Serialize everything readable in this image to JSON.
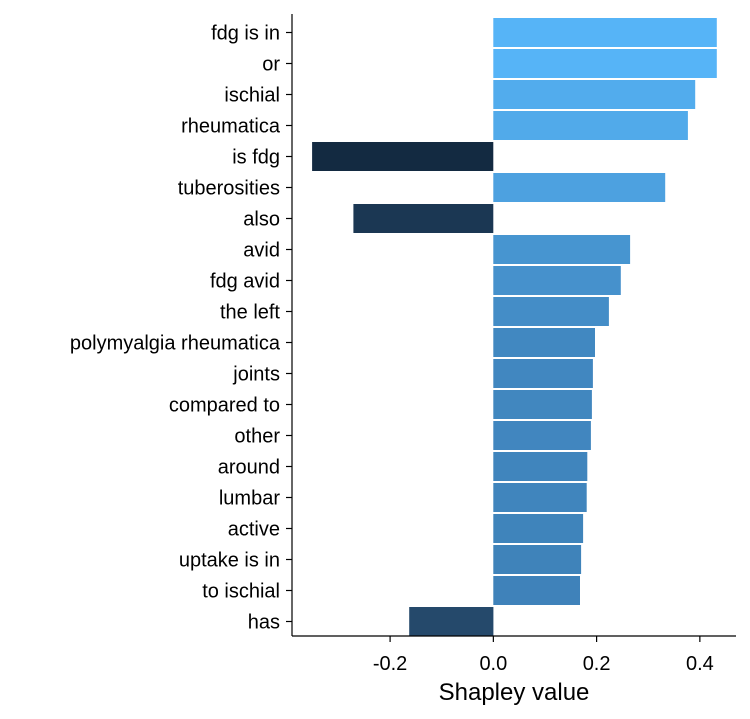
{
  "chart_data": {
    "type": "bar",
    "orientation": "horizontal",
    "xlabel": "Shapley value",
    "xlim": [
      -0.39,
      0.47
    ],
    "xticks": [
      -0.2,
      0.0,
      0.2,
      0.4
    ],
    "xtick_labels": [
      "-0.2",
      "0.0",
      "0.2",
      "0.4"
    ],
    "grid": false,
    "categories": [
      "fdg is in",
      "or",
      "ischial",
      "rheumatica",
      "is fdg",
      "tuberosities",
      "also",
      "avid",
      "fdg avid",
      "the left",
      "polymyalgia rheumatica",
      "joints",
      "compared to",
      "other",
      "around",
      "lumbar",
      "active",
      "uptake is in",
      "to ischial",
      "has"
    ],
    "values": [
      0.433,
      0.433,
      0.391,
      0.377,
      -0.351,
      0.333,
      -0.271,
      0.265,
      0.247,
      0.224,
      0.197,
      0.193,
      0.191,
      0.189,
      0.182,
      0.181,
      0.174,
      0.17,
      0.168,
      -0.163
    ],
    "colors": {
      "positive_high": "#56b4f7",
      "positive_low": "#3e81b8",
      "negative_high": "#132a41",
      "negative_low": "#254a6c"
    }
  }
}
